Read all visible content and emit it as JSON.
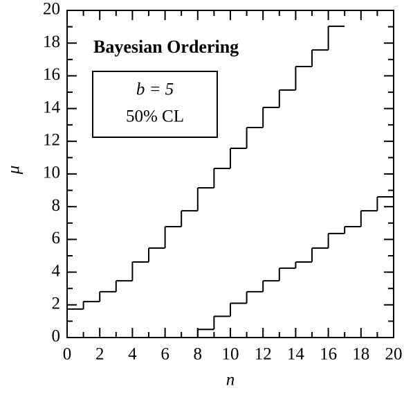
{
  "chart_data": {
    "type": "step",
    "title": "Bayesian Ordering",
    "annotation_lines": [
      "b = 5",
      "50% CL"
    ],
    "xlabel": "n",
    "ylabel": "μ",
    "x": [
      0,
      1,
      2,
      3,
      4,
      5,
      6,
      7,
      8,
      9,
      10,
      11,
      12,
      13,
      14,
      15,
      16,
      17,
      18,
      19
    ],
    "series": [
      {
        "color": "#000000",
        "values": [
          1.74,
          2.2,
          2.8,
          3.47,
          4.62,
          5.47,
          6.78,
          7.75,
          9.15,
          10.34,
          11.57,
          12.84,
          14.07,
          15.13,
          16.57,
          17.58,
          19.03,
          null,
          null,
          null
        ]
      },
      {
        "color": "#000000",
        "values": [
          0,
          0,
          0,
          0,
          0,
          0,
          0,
          0,
          0.5,
          1.3,
          2.1,
          2.8,
          3.47,
          4.24,
          4.62,
          5.47,
          6.36,
          6.78,
          7.75,
          8.6
        ]
      }
    ],
    "xlim": [
      0,
      20
    ],
    "ylim": [
      0,
      20
    ],
    "xticks": [
      0,
      2,
      4,
      6,
      8,
      10,
      12,
      14,
      16,
      18,
      20
    ],
    "yticks": [
      0,
      2,
      4,
      6,
      8,
      10,
      12,
      14,
      16,
      18,
      20
    ]
  }
}
